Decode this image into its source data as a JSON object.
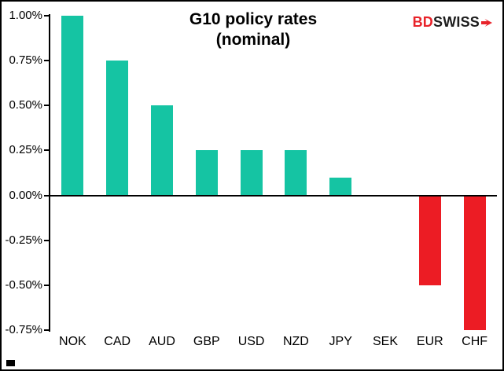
{
  "title": {
    "line1": "G10 policy rates",
    "line2": "(nominal)"
  },
  "logo": {
    "bd": "BD",
    "swiss": "SWISS"
  },
  "colors": {
    "positive": "#15c4a3",
    "negative": "#ec1c24",
    "axis": "#000000"
  },
  "chart_data": {
    "type": "bar",
    "title": "G10 policy rates (nominal)",
    "categories": [
      "NOK",
      "CAD",
      "AUD",
      "GBP",
      "USD",
      "NZD",
      "JPY",
      "SEK",
      "EUR",
      "CHF"
    ],
    "values": [
      1.0,
      0.75,
      0.5,
      0.25,
      0.25,
      0.25,
      0.1,
      0.0,
      -0.5,
      -0.75
    ],
    "ylim": [
      -0.75,
      1.0
    ],
    "grid": false,
    "legend": "none",
    "yticks": [
      {
        "label": "1.00%",
        "value": 1.0
      },
      {
        "label": "0.75%",
        "value": 0.75
      },
      {
        "label": "0.50%",
        "value": 0.5
      },
      {
        "label": "0.25%",
        "value": 0.25
      },
      {
        "label": "0.00%",
        "value": 0.0
      },
      {
        "label": "-0.25%",
        "value": -0.25
      },
      {
        "label": "-0.50%",
        "value": -0.5
      },
      {
        "label": "-0.75%",
        "value": -0.75
      }
    ]
  }
}
